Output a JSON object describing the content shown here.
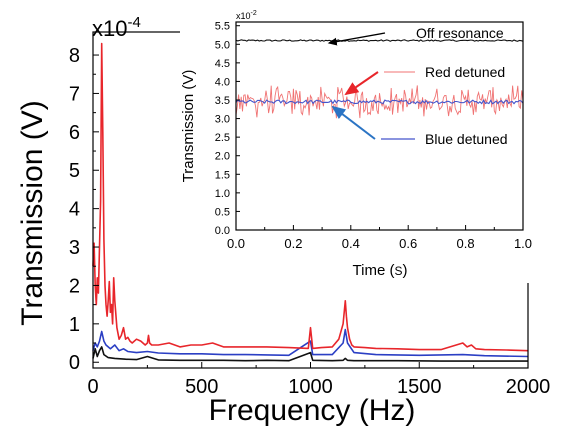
{
  "chart_data": [
    {
      "id": "main",
      "type": "line",
      "title": "",
      "xlabel": "Frequency (Hz)",
      "ylabel": "Transmission (V)",
      "y_multiplier_label": "x10",
      "y_multiplier_exp": "-4",
      "xlim": [
        0,
        2000
      ],
      "ylim": [
        -0.15,
        8.6
      ],
      "xticks": [
        "0",
        "500",
        "1000",
        "1500",
        "2000"
      ],
      "yticks": [
        "0",
        "1",
        "2",
        "3",
        "4",
        "5",
        "6",
        "7",
        "8"
      ],
      "grid": false,
      "series": [
        {
          "color": "#e8262b",
          "x": [
            0,
            5,
            10,
            15,
            20,
            25,
            30,
            35,
            40,
            45,
            50,
            55,
            60,
            65,
            70,
            75,
            80,
            85,
            90,
            95,
            100,
            110,
            120,
            130,
            140,
            150,
            160,
            170,
            180,
            200,
            220,
            240,
            250,
            255,
            260,
            270,
            300,
            350,
            400,
            450,
            500,
            550,
            600,
            700,
            800,
            900,
            990,
            1000,
            1010,
            1050,
            1100,
            1130,
            1150,
            1160,
            1165,
            1170,
            1180,
            1190,
            1200,
            1250,
            1300,
            1400,
            1500,
            1600,
            1700,
            1720,
            1740,
            1760,
            1800,
            1900,
            2000
          ],
          "y": [
            2.5,
            3.1,
            2.0,
            1.5,
            2.2,
            1.8,
            3.0,
            4.2,
            8.3,
            6.0,
            3.2,
            2.0,
            1.5,
            1.2,
            1.6,
            2.1,
            1.3,
            1.5,
            1.0,
            2.2,
            1.6,
            0.9,
            0.6,
            0.7,
            0.9,
            0.6,
            0.65,
            0.55,
            0.5,
            0.6,
            0.55,
            0.45,
            0.5,
            0.7,
            0.5,
            0.45,
            0.45,
            0.5,
            0.4,
            0.45,
            0.45,
            0.5,
            0.4,
            0.4,
            0.4,
            0.38,
            0.36,
            0.9,
            0.36,
            0.38,
            0.4,
            0.6,
            1.0,
            1.6,
            1.2,
            0.9,
            0.6,
            0.45,
            0.4,
            0.38,
            0.36,
            0.35,
            0.33,
            0.33,
            0.5,
            0.4,
            0.45,
            0.35,
            0.33,
            0.32,
            0.3
          ]
        },
        {
          "color": "#2b3fc4",
          "x": [
            0,
            10,
            20,
            30,
            40,
            50,
            60,
            70,
            80,
            90,
            100,
            120,
            140,
            160,
            200,
            250,
            300,
            400,
            500,
            600,
            700,
            800,
            900,
            1000,
            1010,
            1100,
            1150,
            1160,
            1170,
            1200,
            1300,
            1500,
            1700,
            1800,
            2000
          ],
          "y": [
            0.3,
            0.5,
            0.4,
            0.55,
            0.8,
            0.55,
            0.45,
            0.4,
            0.35,
            0.4,
            0.45,
            0.3,
            0.35,
            0.28,
            0.25,
            0.28,
            0.24,
            0.22,
            0.22,
            0.2,
            0.2,
            0.19,
            0.18,
            0.55,
            0.2,
            0.2,
            0.5,
            0.85,
            0.5,
            0.25,
            0.2,
            0.18,
            0.2,
            0.17,
            0.15
          ]
        },
        {
          "color": "#111111",
          "x": [
            0,
            10,
            20,
            30,
            40,
            50,
            70,
            100,
            150,
            200,
            250,
            300,
            400,
            500,
            600,
            700,
            800,
            900,
            1000,
            1010,
            1100,
            1150,
            1160,
            1170,
            1200,
            1400,
            1600,
            1800,
            2000
          ],
          "y": [
            0.1,
            0.35,
            0.15,
            0.3,
            0.4,
            0.2,
            0.12,
            0.1,
            0.08,
            0.07,
            0.15,
            0.06,
            0.05,
            0.05,
            0.05,
            0.04,
            0.05,
            0.04,
            0.25,
            0.05,
            0.04,
            0.05,
            0.1,
            0.05,
            0.04,
            0.04,
            0.03,
            0.03,
            0.03
          ]
        }
      ]
    },
    {
      "id": "inset",
      "type": "line",
      "title": "",
      "xlabel_main": "Time (",
      "xlabel_unit": "S",
      "xlabel_close": ")",
      "ylabel": "Transmission (V)",
      "y_multiplier_label": "x10",
      "y_multiplier_exp": "-2",
      "xlim": [
        0,
        1.0
      ],
      "ylim": [
        0,
        5.6
      ],
      "xticks": [
        "0.0",
        "0.2",
        "0.4",
        "0.6",
        "0.8",
        "1.0"
      ],
      "yticks": [
        "0.0",
        "0.5",
        "1.0",
        "1.5",
        "2.0",
        "2.5",
        "3.0",
        "3.5",
        "4.0",
        "4.5",
        "5.0",
        "5.5"
      ],
      "grid": false,
      "series": [
        {
          "name": "Off resonance",
          "color": "#111111",
          "mean": 5.1,
          "noise": 0.02
        },
        {
          "name": "Red detuned",
          "color": "#f07373",
          "mean": 3.45,
          "noise": 0.3
        },
        {
          "name": "Blue detuned",
          "color": "#4455cc",
          "mean": 3.45,
          "noise": 0.05
        }
      ],
      "annotations": [
        {
          "text": "Off resonance",
          "series": 0,
          "arrow_color": "#000000"
        },
        {
          "text": "Red detuned",
          "series": 1,
          "arrow_color": "#e8262b"
        },
        {
          "text": "Blue detuned",
          "series": 2,
          "arrow_color": "#2b74c4"
        }
      ]
    }
  ]
}
